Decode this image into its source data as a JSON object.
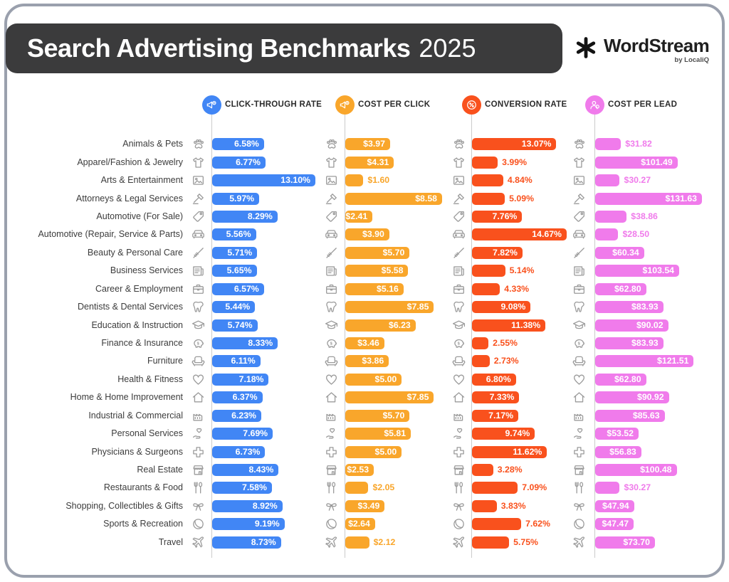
{
  "header": {
    "title_main": "Search Advertising Benchmarks",
    "title_year": "2025"
  },
  "logo": {
    "brand": "WordStream",
    "byline": "by LocaliQ"
  },
  "chart_data": {
    "type": "bar",
    "orientation": "horizontal",
    "title": "Search Advertising Benchmarks 2025",
    "legend_position": "top",
    "grid": false,
    "categories": [
      "Animals & Pets",
      "Apparel/Fashion & Jewelry",
      "Arts & Entertainment",
      "Attorneys & Legal Services",
      "Automotive (For Sale)",
      "Automotive (Repair, Service & Parts)",
      "Beauty & Personal Care",
      "Business Services",
      "Career & Employment",
      "Dentists & Dental Services",
      "Education & Instruction",
      "Finance & Insurance",
      "Furniture",
      "Health & Fitness",
      "Home & Home Improvement",
      "Industrial & Commercial",
      "Personal Services",
      "Physicians & Surgeons",
      "Real Estate",
      "Restaurants & Food",
      "Shopping, Collectibles & Gifts",
      "Sports & Recreation",
      "Travel"
    ],
    "category_icons": [
      "paw-icon",
      "tshirt-icon",
      "picture-icon",
      "gavel-icon",
      "price-tag-icon",
      "car-icon",
      "brush-icon",
      "newspaper-icon",
      "briefcase-icon",
      "tooth-icon",
      "graduation-cap-icon",
      "piggy-bank-icon",
      "armchair-icon",
      "heart-icon",
      "house-icon",
      "factory-icon",
      "hand-heart-icon",
      "medical-cross-icon",
      "storefront-icon",
      "utensils-icon",
      "gift-bow-icon",
      "ball-icon",
      "airplane-icon"
    ],
    "series": [
      {
        "name": "Click-Through Rate",
        "header": "CLICK-THROUGH RATE",
        "icon": "megaphone-click-icon",
        "color": "#4186F5",
        "format": "percent",
        "axis_max": 13.1,
        "values": [
          6.58,
          6.77,
          13.1,
          5.97,
          8.29,
          5.56,
          5.71,
          5.65,
          6.57,
          5.44,
          5.74,
          8.33,
          6.11,
          7.18,
          6.37,
          6.23,
          7.69,
          6.73,
          8.43,
          7.58,
          8.92,
          9.19,
          8.73
        ],
        "display": [
          "6.58%",
          "6.77%",
          "13.10%",
          "5.97%",
          "8.29%",
          "5.56%",
          "5.71%",
          "5.65%",
          "6.57%",
          "5.44%",
          "5.74%",
          "8.33%",
          "6.11%",
          "7.18%",
          "6.37%",
          "6.23%",
          "7.69%",
          "6.73%",
          "8.43%",
          "7.58%",
          "8.92%",
          "9.19%",
          "8.73%"
        ],
        "label_inside": [
          true,
          true,
          true,
          true,
          true,
          true,
          true,
          true,
          true,
          true,
          true,
          true,
          true,
          true,
          true,
          true,
          true,
          true,
          true,
          true,
          true,
          true,
          true
        ]
      },
      {
        "name": "Cost Per Click",
        "header": "COST PER CLICK",
        "icon": "megaphone-dollar-icon",
        "color": "#F9A62B",
        "format": "currency",
        "axis_max": 8.58,
        "values": [
          3.97,
          4.31,
          1.6,
          8.58,
          2.41,
          3.9,
          5.7,
          5.58,
          5.16,
          7.85,
          6.23,
          3.46,
          3.86,
          5.0,
          7.85,
          5.7,
          5.81,
          5.0,
          2.53,
          2.05,
          3.49,
          2.64,
          2.12
        ],
        "display": [
          "$3.97",
          "$4.31",
          "$1.60",
          "$8.58",
          "$2.41",
          "$3.90",
          "$5.70",
          "$5.58",
          "$5.16",
          "$7.85",
          "$6.23",
          "$3.46",
          "$3.86",
          "$5.00",
          "$7.85",
          "$5.70",
          "$5.81",
          "$5.00",
          "$2.53",
          "$2.05",
          "$3.49",
          "$2.64",
          "$2.12"
        ],
        "label_inside": [
          true,
          true,
          false,
          true,
          true,
          true,
          true,
          true,
          true,
          true,
          true,
          true,
          true,
          true,
          true,
          true,
          true,
          true,
          true,
          false,
          true,
          true,
          false
        ]
      },
      {
        "name": "Conversion Rate",
        "header": "CONVERSION RATE",
        "icon": "percent-badge-icon",
        "color": "#F9511D",
        "format": "percent",
        "axis_max": 14.67,
        "values": [
          13.07,
          3.99,
          4.84,
          5.09,
          7.76,
          14.67,
          7.82,
          5.14,
          4.33,
          9.08,
          11.38,
          2.55,
          2.73,
          6.8,
          7.33,
          7.17,
          9.74,
          11.62,
          3.28,
          7.09,
          3.83,
          7.62,
          5.75
        ],
        "display": [
          "13.07%",
          "3.99%",
          "4.84%",
          "5.09%",
          "7.76%",
          "14.67%",
          "7.82%",
          "5.14%",
          "4.33%",
          "9.08%",
          "11.38%",
          "2.55%",
          "2.73%",
          "6.80%",
          "7.33%",
          "7.17%",
          "9.74%",
          "11.62%",
          "3.28%",
          "7.09%",
          "3.83%",
          "7.62%",
          "5.75%"
        ],
        "label_inside": [
          true,
          false,
          false,
          false,
          true,
          true,
          true,
          false,
          false,
          true,
          true,
          false,
          false,
          true,
          true,
          true,
          true,
          true,
          false,
          false,
          false,
          false,
          false
        ]
      },
      {
        "name": "Cost Per Lead",
        "header": "COST PER LEAD",
        "icon": "person-lead-icon",
        "color": "#F07BEB",
        "format": "currency",
        "axis_max": 131.63,
        "values": [
          31.82,
          101.49,
          30.27,
          131.63,
          38.86,
          28.5,
          60.34,
          103.54,
          62.8,
          83.93,
          90.02,
          83.93,
          121.51,
          62.8,
          90.92,
          85.63,
          53.52,
          56.83,
          100.48,
          30.27,
          47.94,
          47.47,
          73.7
        ],
        "display": [
          "$31.82",
          "$101.49",
          "$30.27",
          "$131.63",
          "$38.86",
          "$28.50",
          "$60.34",
          "$103.54",
          "$62.80",
          "$83.93",
          "$90.02",
          "$83.93",
          "$121.51",
          "$62.80",
          "$90.92",
          "$85.63",
          "$53.52",
          "$56.83",
          "$100.48",
          "$30.27",
          "$47.94",
          "$47.47",
          "$73.70"
        ],
        "label_inside": [
          false,
          true,
          false,
          true,
          false,
          false,
          true,
          true,
          true,
          true,
          true,
          true,
          true,
          true,
          true,
          true,
          true,
          true,
          true,
          false,
          true,
          true,
          true
        ]
      }
    ]
  }
}
